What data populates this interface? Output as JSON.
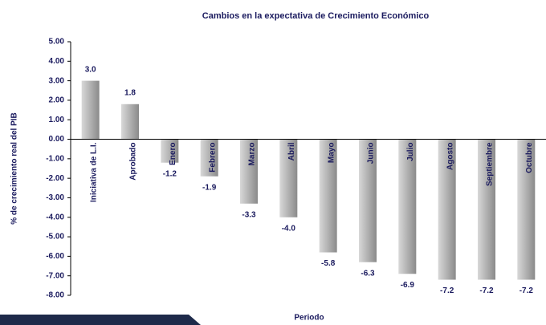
{
  "chart_data": {
    "type": "bar",
    "title": "Cambios en la expectativa de Crecimiento Económico",
    "y_label": "% de crecimiento real del PIB",
    "x_label": "Periodo",
    "categories": [
      "Iniciativa de L.I.",
      "Aprobado",
      "Enero",
      "Febrero",
      "Marzo",
      "Abril",
      "Mayo",
      "Junio",
      "Julio",
      "Agosto",
      "Septiembre",
      "Octubre"
    ],
    "values": [
      3.0,
      1.8,
      -1.2,
      -1.9,
      -3.3,
      -4.0,
      -5.8,
      -6.3,
      -6.9,
      -7.2,
      -7.2,
      -7.2
    ],
    "value_labels": [
      "3.0",
      "1.8",
      "-1.2",
      "-1.9",
      "-3.3",
      "-4.0",
      "-5.8",
      "-6.3",
      "-6.9",
      "-7.2",
      "-7.2",
      "-7.2"
    ],
    "color": "#9a9a9a",
    "ylim": [
      -8,
      5
    ],
    "yticks": [
      {
        "value": 5,
        "label": "5.00"
      },
      {
        "value": 4,
        "label": "4.00"
      },
      {
        "value": 3,
        "label": "3.00"
      },
      {
        "value": 2,
        "label": "2.00"
      },
      {
        "value": 1,
        "label": "1.00"
      },
      {
        "value": 0,
        "label": "0.00"
      },
      {
        "value": -1,
        "label": "-1.00"
      },
      {
        "value": -2,
        "label": "-2.00"
      },
      {
        "value": -3,
        "label": "-3.00"
      },
      {
        "value": -4,
        "label": "-4.00"
      },
      {
        "value": -5,
        "label": "-5.00"
      },
      {
        "value": -6,
        "label": "-6.00"
      },
      {
        "value": -7,
        "label": "-7.00"
      },
      {
        "value": -8,
        "label": "-8.00"
      }
    ]
  }
}
